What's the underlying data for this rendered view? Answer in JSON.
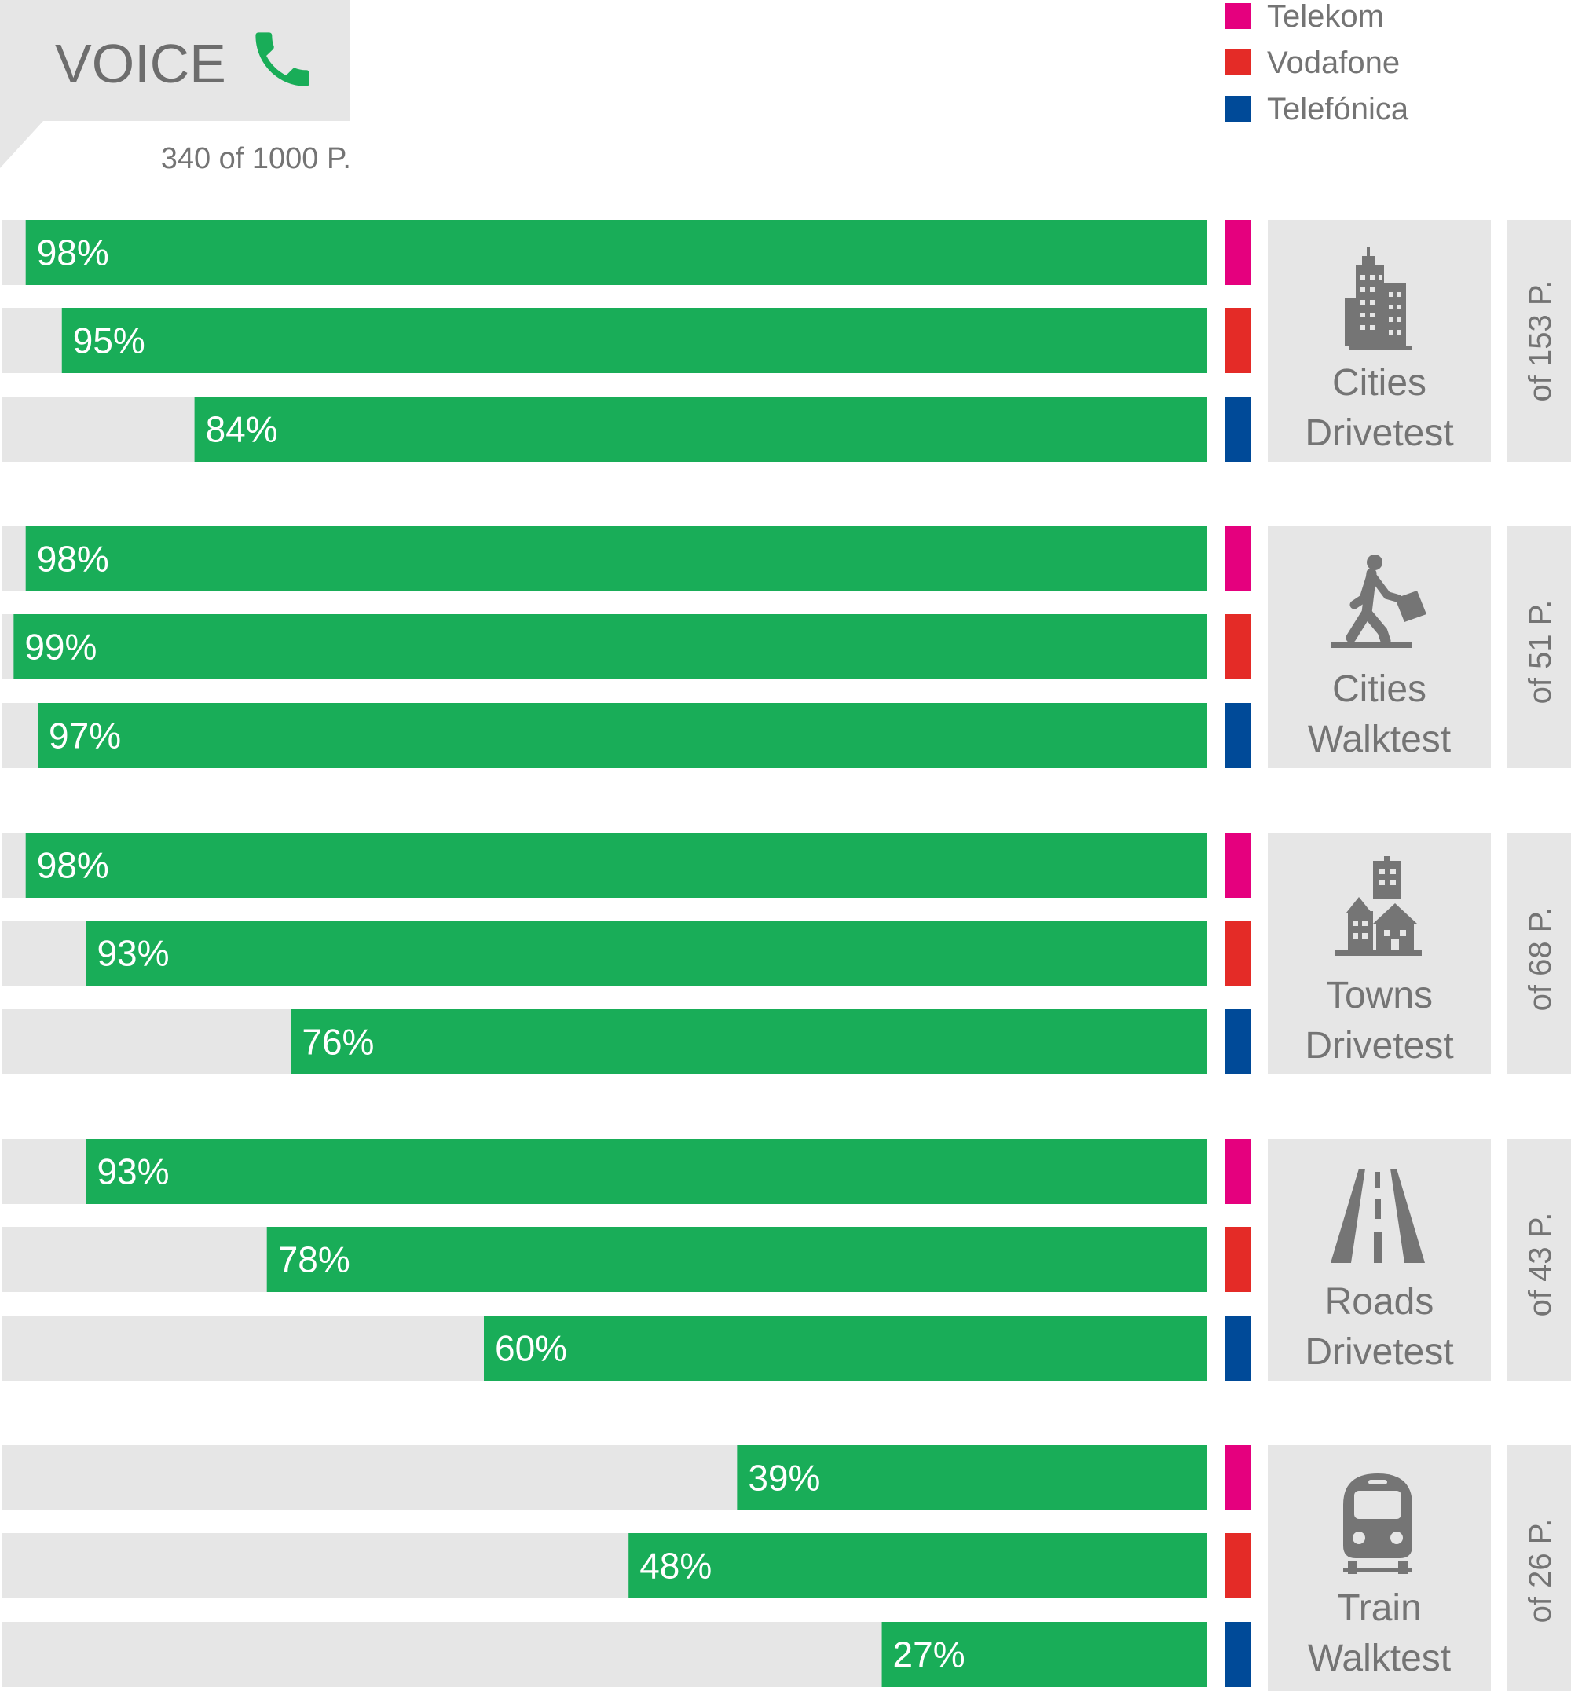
{
  "header": {
    "title": "VOICE",
    "subtitle": "340 of 1000 P.",
    "icon": "phone-icon"
  },
  "colors": {
    "bar": "#19ad58",
    "track": "#e6e6e6",
    "panel": "#e6e6e6",
    "icon": "#757575",
    "phone": "#19ad58",
    "text_light": "#747474"
  },
  "legend": [
    {
      "name": "Telekom",
      "color": "#e5007e"
    },
    {
      "name": "Vodafone",
      "color": "#e42b27"
    },
    {
      "name": "Telefónica",
      "color": "#004a98"
    }
  ],
  "groups": [
    {
      "label_lines": [
        "Cities",
        "Drivetest"
      ],
      "points_label": "of 153 P.",
      "icon": "city-buildings-icon"
    },
    {
      "label_lines": [
        "Cities",
        "Walktest"
      ],
      "points_label": "of 51 P.",
      "icon": "walking-person-icon"
    },
    {
      "label_lines": [
        "Towns",
        "Drivetest"
      ],
      "points_label": "of 68 P.",
      "icon": "town-houses-icon"
    },
    {
      "label_lines": [
        "Roads",
        "Drivetest"
      ],
      "points_label": "of 43 P.",
      "icon": "road-icon"
    },
    {
      "label_lines": [
        "Train",
        "Walktest"
      ],
      "points_label": "of 26 P.",
      "icon": "train-icon"
    }
  ],
  "chart_data": {
    "type": "bar",
    "orientation": "horizontal",
    "title": "VOICE",
    "categories": [
      "Cities Drivetest",
      "Cities Walktest",
      "Towns Drivetest",
      "Roads Drivetest",
      "Train Walktest"
    ],
    "series": [
      {
        "name": "Telekom",
        "values": [
          98,
          98,
          98,
          93,
          39
        ]
      },
      {
        "name": "Vodafone",
        "values": [
          95,
          99,
          93,
          78,
          48
        ]
      },
      {
        "name": "Telefónica",
        "values": [
          84,
          97,
          76,
          60,
          27
        ]
      }
    ],
    "value_suffix": "%",
    "xlim": [
      0,
      100
    ],
    "bars_grow_from": "right",
    "legend_position": "top-right"
  }
}
